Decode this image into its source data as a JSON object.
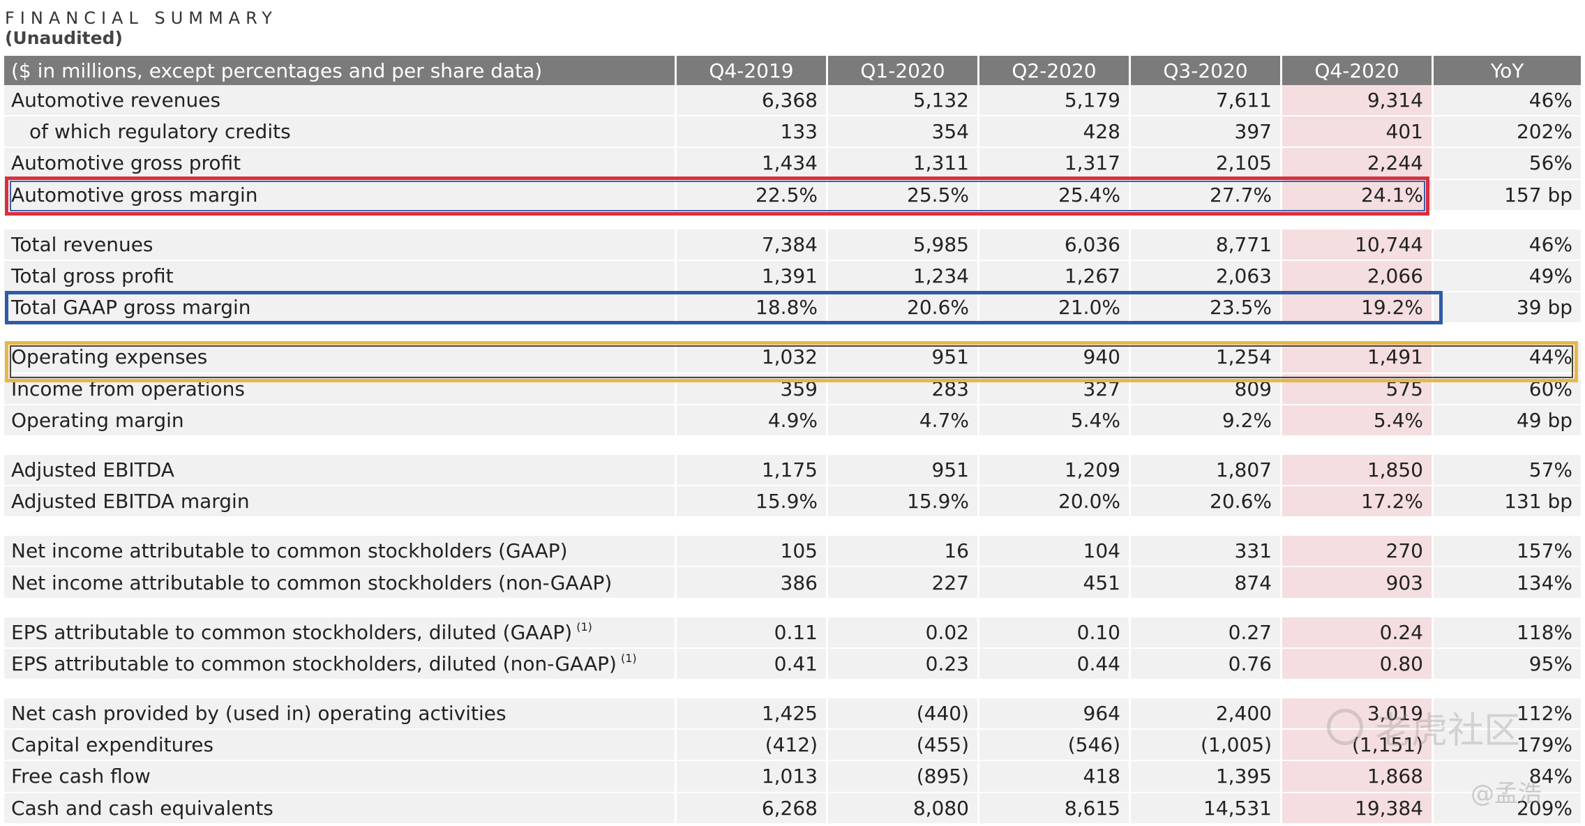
{
  "title": "FINANCIAL SUMMARY",
  "subtitle": "(Unaudited)",
  "header": [
    "($ in millions, except percentages and per share data)",
    "Q4-2019",
    "Q1-2020",
    "Q2-2020",
    "Q3-2020",
    "Q4-2020",
    "YoY"
  ],
  "highlight_colors": {
    "red_box": "#d8303d",
    "blue_box": "#2f5aa8",
    "yellow_box": "#e6b84a",
    "q4_2020_column": "#f4dedf",
    "header_bg": "#7b7b7b"
  },
  "rows": [
    {
      "label": "Automotive revenues",
      "q4_2019": "6,368",
      "q1_2020": "5,132",
      "q2_2020": "5,179",
      "q3_2020": "7,611",
      "q4_2020": "9,314",
      "yoy": "46%"
    },
    {
      "label": "of which regulatory credits",
      "q4_2019": "133",
      "q1_2020": "354",
      "q2_2020": "428",
      "q3_2020": "397",
      "q4_2020": "401",
      "yoy": "202%"
    },
    {
      "label": "Automotive gross profit",
      "q4_2019": "1,434",
      "q1_2020": "1,311",
      "q2_2020": "1,317",
      "q3_2020": "2,105",
      "q4_2020": "2,244",
      "yoy": "56%"
    },
    {
      "label": "Automotive gross margin",
      "q4_2019": "22.5%",
      "q1_2020": "25.5%",
      "q2_2020": "25.4%",
      "q3_2020": "27.7%",
      "q4_2020": "24.1%",
      "yoy": "157 bp"
    },
    {
      "label": "Total revenues",
      "q4_2019": "7,384",
      "q1_2020": "5,985",
      "q2_2020": "6,036",
      "q3_2020": "8,771",
      "q4_2020": "10,744",
      "yoy": "46%"
    },
    {
      "label": "Total gross profit",
      "q4_2019": "1,391",
      "q1_2020": "1,234",
      "q2_2020": "1,267",
      "q3_2020": "2,063",
      "q4_2020": "2,066",
      "yoy": "49%"
    },
    {
      "label": "Total GAAP gross margin",
      "q4_2019": "18.8%",
      "q1_2020": "20.6%",
      "q2_2020": "21.0%",
      "q3_2020": "23.5%",
      "q4_2020": "19.2%",
      "yoy": "39 bp"
    },
    {
      "label": "Operating expenses",
      "q4_2019": "1,032",
      "q1_2020": "951",
      "q2_2020": "940",
      "q3_2020": "1,254",
      "q4_2020": "1,491",
      "yoy": "44%"
    },
    {
      "label": "Income from operations",
      "q4_2019": "359",
      "q1_2020": "283",
      "q2_2020": "327",
      "q3_2020": "809",
      "q4_2020": "575",
      "yoy": "60%"
    },
    {
      "label": "Operating margin",
      "q4_2019": "4.9%",
      "q1_2020": "4.7%",
      "q2_2020": "5.4%",
      "q3_2020": "9.2%",
      "q4_2020": "5.4%",
      "yoy": "49 bp"
    },
    {
      "label": "Adjusted EBITDA",
      "q4_2019": "1,175",
      "q1_2020": "951",
      "q2_2020": "1,209",
      "q3_2020": "1,807",
      "q4_2020": "1,850",
      "yoy": "57%"
    },
    {
      "label": "Adjusted EBITDA margin",
      "q4_2019": "15.9%",
      "q1_2020": "15.9%",
      "q2_2020": "20.0%",
      "q3_2020": "20.6%",
      "q4_2020": "17.2%",
      "yoy": "131 bp"
    },
    {
      "label": "Net income attributable to common stockholders (GAAP)",
      "q4_2019": "105",
      "q1_2020": "16",
      "q2_2020": "104",
      "q3_2020": "331",
      "q4_2020": "270",
      "yoy": "157%"
    },
    {
      "label": "Net income attributable to common stockholders (non-GAAP)",
      "q4_2019": "386",
      "q1_2020": "227",
      "q2_2020": "451",
      "q3_2020": "874",
      "q4_2020": "903",
      "yoy": "134%"
    },
    {
      "label": "EPS attributable to common stockholders, diluted (GAAP)",
      "footnote": "(1)",
      "q4_2019": "0.11",
      "q1_2020": "0.02",
      "q2_2020": "0.10",
      "q3_2020": "0.27",
      "q4_2020": "0.24",
      "yoy": "118%"
    },
    {
      "label": "EPS attributable to common stockholders, diluted (non-GAAP)",
      "footnote": "(1)",
      "q4_2019": "0.41",
      "q1_2020": "0.23",
      "q2_2020": "0.44",
      "q3_2020": "0.76",
      "q4_2020": "0.80",
      "yoy": "95%"
    },
    {
      "label": "Net cash provided by (used in) operating activities",
      "q4_2019": "1,425",
      "q1_2020": "(440)",
      "q2_2020": "964",
      "q3_2020": "2,400",
      "q4_2020": "3,019",
      "yoy": "112%"
    },
    {
      "label": "Capital expenditures",
      "q4_2019": "(412)",
      "q1_2020": "(455)",
      "q2_2020": "(546)",
      "q3_2020": "(1,005)",
      "q4_2020": "(1,151)",
      "yoy": "179%"
    },
    {
      "label": "Free cash flow",
      "q4_2019": "1,013",
      "q1_2020": "(895)",
      "q2_2020": "418",
      "q3_2020": "1,395",
      "q4_2020": "1,868",
      "yoy": "84%"
    },
    {
      "label": "Cash and cash equivalents",
      "q4_2019": "6,268",
      "q1_2020": "8,080",
      "q2_2020": "8,615",
      "q3_2020": "14,531",
      "q4_2020": "19,384",
      "yoy": "209%"
    }
  ],
  "watermark": {
    "text": "老虎社区",
    "author": "@孟浩"
  }
}
